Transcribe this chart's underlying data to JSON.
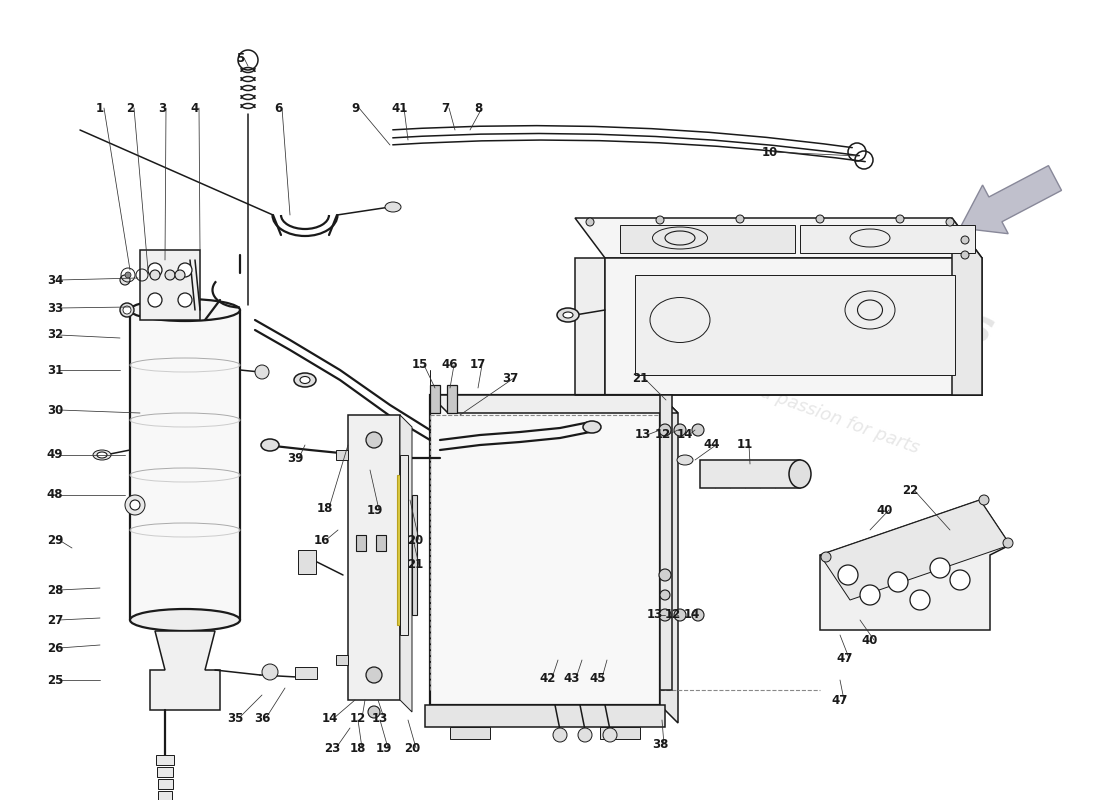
{
  "bg": "#ffffff",
  "lc": "#1a1a1a",
  "wm_color1": "#d0d0d0",
  "wm_color2": "#c8c8b0",
  "arrow_color": "#b0b0c0",
  "lw_thin": 0.7,
  "lw_med": 1.1,
  "lw_thick": 1.6,
  "label_fs": 8.5,
  "label_fw": "bold"
}
